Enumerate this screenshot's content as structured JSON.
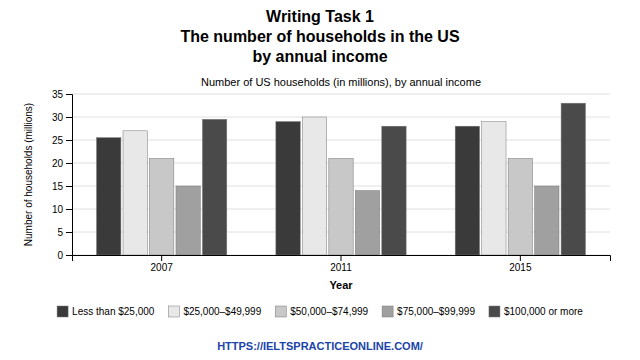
{
  "heading": [
    "Writing Task 1",
    "The number of households in the US",
    "by annual income"
  ],
  "footer": "HTTPS://IELTSPRACTICEONLINE.COM/",
  "chart_data": {
    "type": "bar",
    "title": "Number of US households (in millions), by annual income",
    "x_label": "Year",
    "y_label": "Number of households (millions)",
    "categories": [
      "2007",
      "2011",
      "2015"
    ],
    "series": [
      {
        "name": "Less than $25,000",
        "color": "#3a3a3a",
        "values": [
          25.5,
          29.0,
          28.0
        ]
      },
      {
        "name": "$25,000–$49,999",
        "color": "#e8e8e8",
        "values": [
          27.0,
          30.0,
          29.0
        ]
      },
      {
        "name": "$50,000–$74,999",
        "color": "#c8c8c8",
        "values": [
          21.0,
          21.0,
          21.0
        ]
      },
      {
        "name": "$75,000–$99,999",
        "color": "#a0a0a0",
        "values": [
          15.0,
          14.0,
          15.0
        ]
      },
      {
        "name": "$100,000 or more",
        "color": "#4a4a4a",
        "values": [
          29.5,
          28.0,
          33.0
        ]
      }
    ],
    "ylim": [
      0,
      35
    ],
    "yticks": [
      0,
      5,
      10,
      15,
      20,
      25,
      30,
      35
    ],
    "grid": true,
    "legend": "bottom"
  }
}
